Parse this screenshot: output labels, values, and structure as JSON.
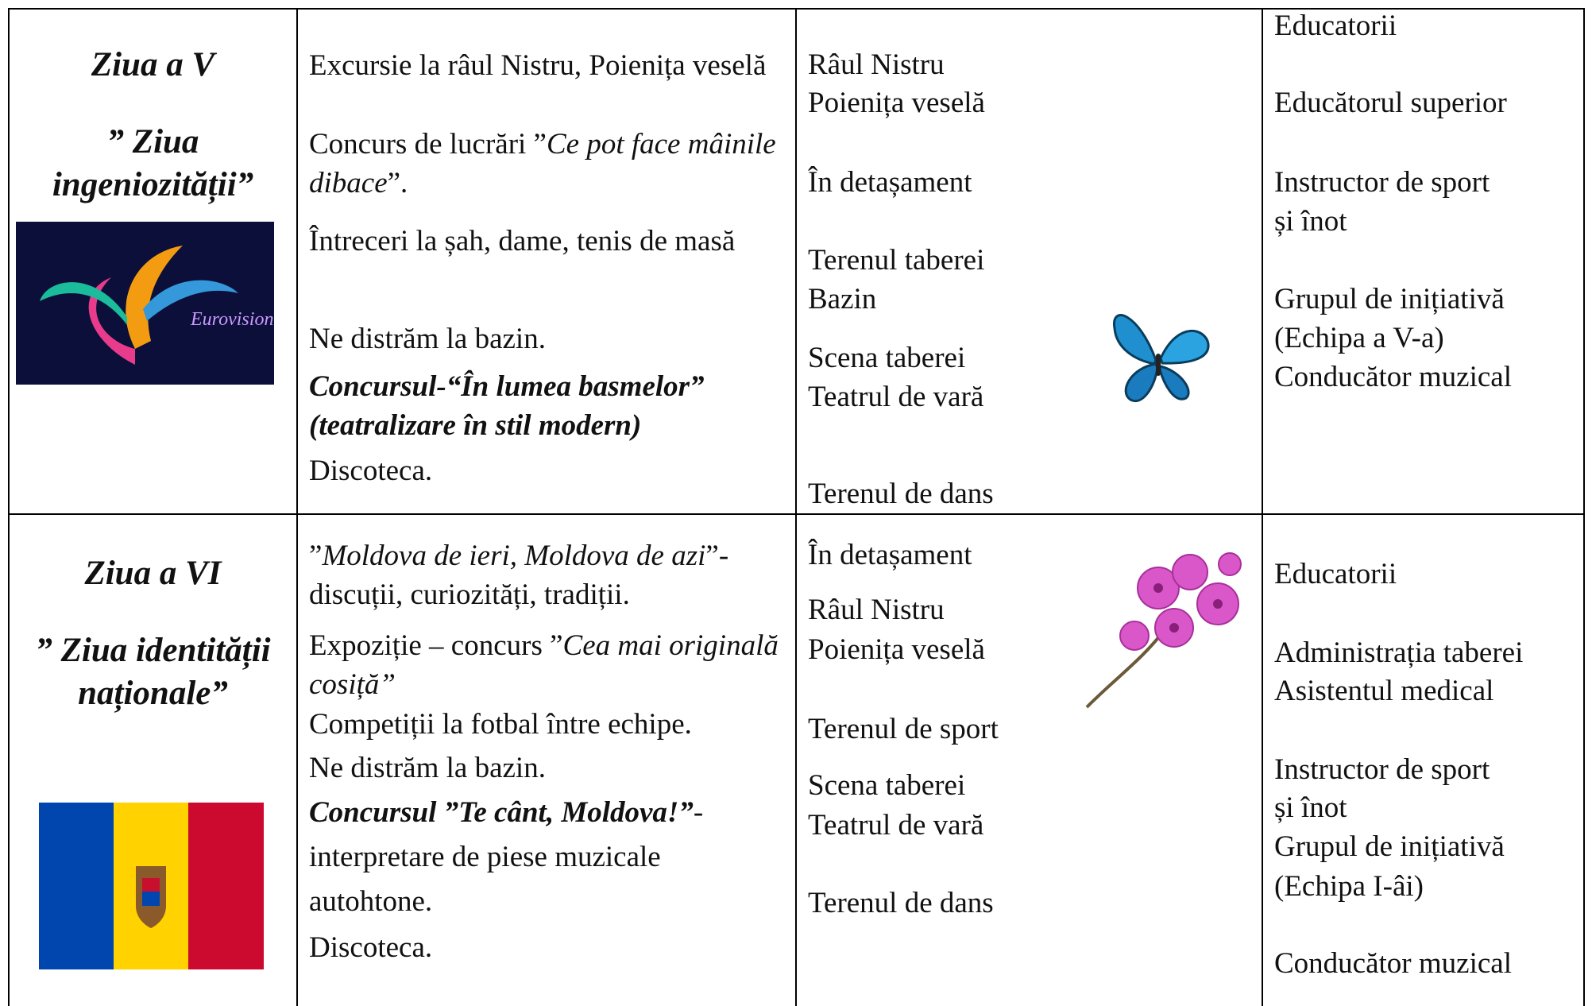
{
  "rows": [
    {
      "day": "Ziua a V",
      "theme": "” Ziua ingeniozității”",
      "activities": [
        "Excursie la râul Nistru, Poienița veselă",
        [
          "Concurs de lucrări ”",
          "Ce pot face mâinile dibace",
          "”."
        ],
        "Întreceri la șah, dame, tenis de masă",
        "Ne distrăm la bazin.",
        "Concursul-“În lumea basmelor” (teatralizare în stil modern)",
        "Discoteca."
      ],
      "locations": [
        "Râul Nistru",
        "Poienița veselă",
        "În detașament",
        "Terenul taberei",
        "Bazin",
        "Scena taberei",
        "Teatrul de vară",
        "Terenul de dans"
      ],
      "staff": [
        "Educatorii",
        "Educătorul superior",
        "Instructor de sport",
        "și înot",
        "Grupul de inițiativă",
        "(Echipa a V-a)",
        "Conducător muzical"
      ]
    },
    {
      "day": "Ziua a VI",
      "theme": "” Ziua identității naționale”",
      "activities": [
        [
          "”",
          "Moldova de ieri, Moldova de azi",
          "”- discuții, curiozități, tradiții."
        ],
        [
          "Expoziție – concurs ”",
          "Cea mai originală cosiță”"
        ],
        "Competiții la fotbal între echipe.",
        "Ne distrăm la bazin.",
        [
          "Concursul ”Te cânt, Moldova!”",
          "- interpretare  de piese muzicale autohtone."
        ],
        "Discoteca."
      ],
      "locations": [
        "În detașament",
        "Râul Nistru",
        "Poienița veselă",
        "Terenul de sport",
        "Scena taberei",
        "Teatrul de vară",
        "Terenul de dans"
      ],
      "staff": [
        "Educatorii",
        "Administrația taberei",
        "Asistentul medical",
        "Instructor de sport",
        "și înot",
        "Grupul de inițiativă",
        "(Echipa I-âi)",
        "Conducător muzical"
      ]
    }
  ]
}
